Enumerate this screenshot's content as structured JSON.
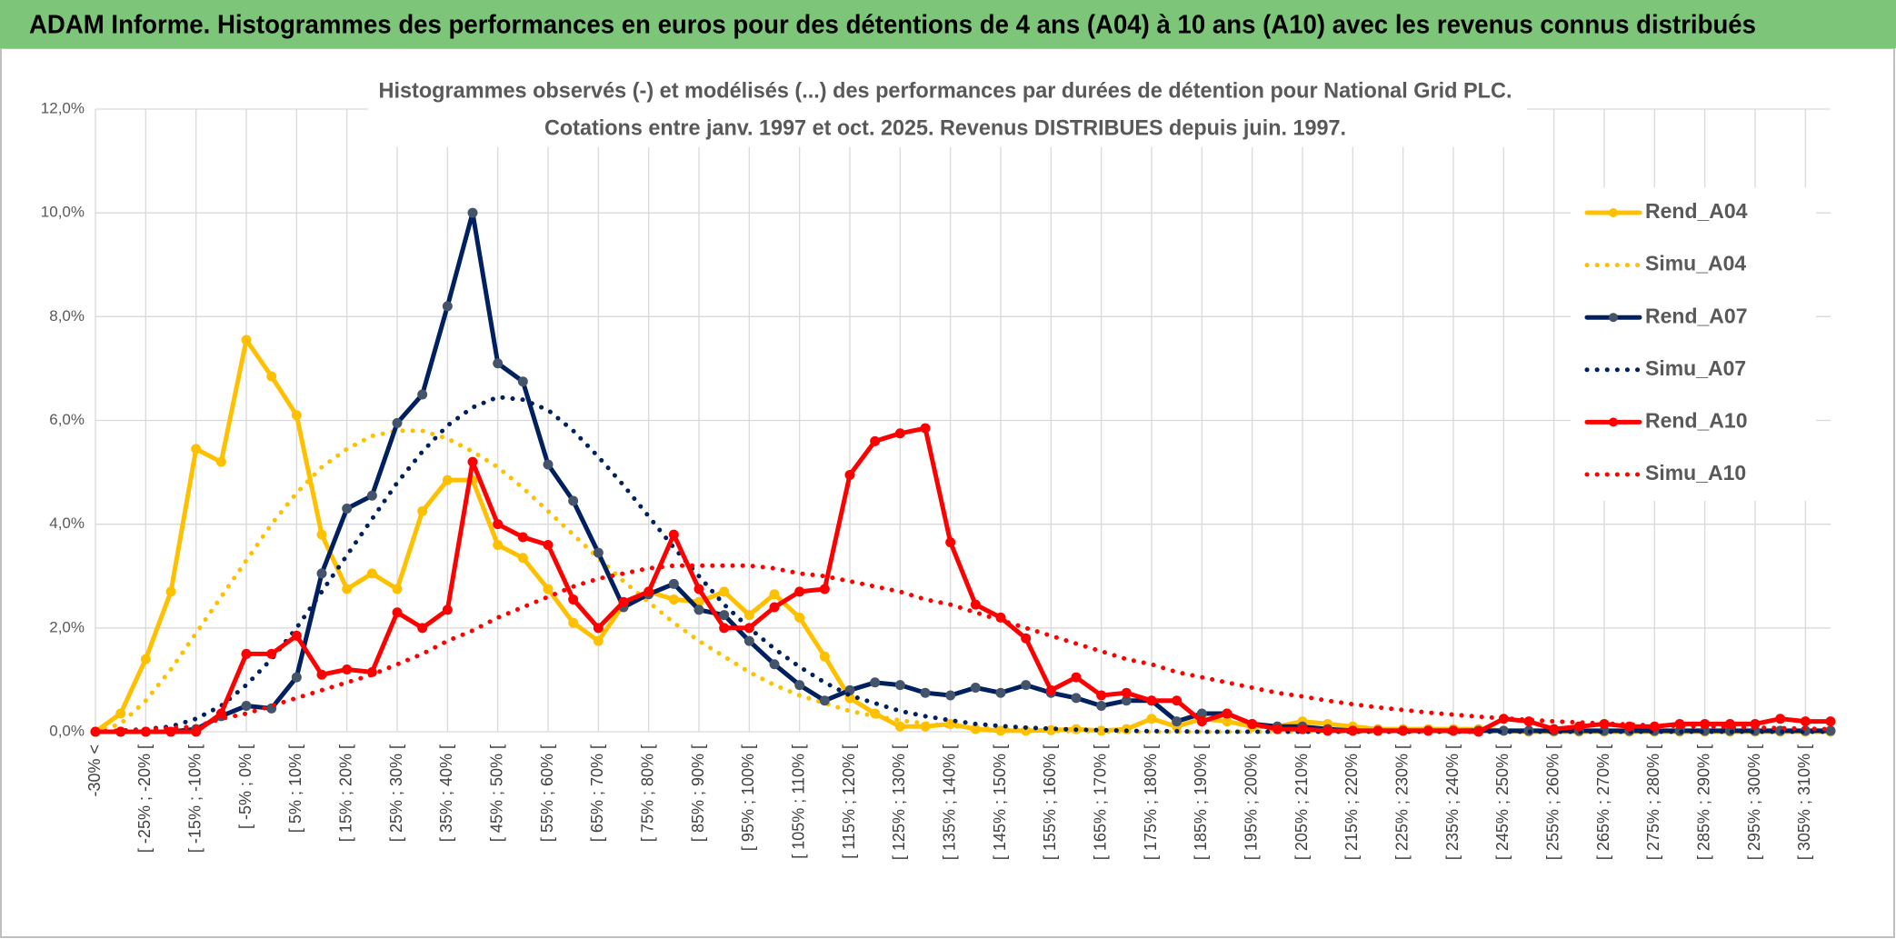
{
  "header": {
    "title": "ADAM Informe. Histogrammes des performances en euros pour des détentions de 4 ans (A04) à 10 ans (A10) avec les revenus connus distribués"
  },
  "chart_data": {
    "type": "line",
    "title": "Histogrammes observés (-) et modélisés (...) des performances par durées de détention pour National Grid PLC.",
    "subtitle": "Cotations entre janv. 1997 et oct. 2025. Revenus DISTRIBUES depuis juin. 1997.",
    "categories": [
      "-30% <",
      null,
      "[ -25% ; -20% [",
      null,
      "[ -15% ; -10% [",
      null,
      "[ -5% ; 0% [",
      null,
      "[ 5% ; 10% [",
      null,
      "[ 15% ; 20% [",
      null,
      "[ 25% ; 30% [",
      null,
      "[ 35% ; 40% [",
      null,
      "[ 45% ; 50% [",
      null,
      "[ 55% ; 60% [",
      null,
      "[ 65% ; 70% [",
      null,
      "[ 75% ; 80% [",
      null,
      "[ 85% ; 90% [",
      null,
      "[ 95% ; 100% [",
      null,
      "[ 105% ; 110% [",
      null,
      "[ 115% ; 120% [",
      null,
      "[ 125% ; 130% [",
      null,
      "[ 135% ; 140% [",
      null,
      "[ 145% ; 150% [",
      null,
      "[ 155% ; 160% [",
      null,
      "[ 165% ; 170% [",
      null,
      "[ 175% ; 180% [",
      null,
      "[ 185% ; 190% [",
      null,
      "[ 195% ; 200% [",
      null,
      "[ 205% ; 210% [",
      null,
      "[ 215% ; 220% [",
      null,
      "[ 225% ; 230% [",
      null,
      "[ 235% ; 240% [",
      null,
      "[ 245% ; 250% [",
      null,
      "[ 255% ; 260% [",
      null,
      "[ 265% ; 270% [",
      null,
      "[ 275% ; 280% [",
      null,
      "[ 285% ; 290% [",
      null,
      "[ 295% ; 300% [",
      null,
      "[ 305% ; 310% [",
      null
    ],
    "series": [
      {
        "name": "Rend_A04",
        "color": "#FFC000",
        "style": "solid",
        "markers": true,
        "marker_color": "#FFC000",
        "values": [
          0,
          0.35,
          1.4,
          2.7,
          5.45,
          5.2,
          7.55,
          6.85,
          6.1,
          3.8,
          2.75,
          3.05,
          2.75,
          4.25,
          4.85,
          4.85,
          3.6,
          3.35,
          2.75,
          2.1,
          1.75,
          2.45,
          2.7,
          2.55,
          2.5,
          2.7,
          2.25,
          2.65,
          2.2,
          1.45,
          0.65,
          0.35,
          0.1,
          0.1,
          0.15,
          0.05,
          0.02,
          0.02,
          0.03,
          0.05,
          0.02,
          0.05,
          0.25,
          0.1,
          0.25,
          0.2,
          0.1,
          0.1,
          0.2,
          0.15,
          0.1,
          0.05,
          0.05,
          0.05,
          0.05,
          0.05,
          0.02,
          0,
          0,
          0,
          0,
          0,
          0,
          0,
          0,
          0,
          0,
          0,
          0,
          0
        ]
      },
      {
        "name": "Simu_A04",
        "color": "#FFC000",
        "style": "dotted",
        "markers": false,
        "values": [
          0,
          0.15,
          0.6,
          1.2,
          1.9,
          2.6,
          3.3,
          4.0,
          4.6,
          5.1,
          5.45,
          5.7,
          5.8,
          5.8,
          5.65,
          5.4,
          5.1,
          4.7,
          4.25,
          3.8,
          3.35,
          2.9,
          2.5,
          2.1,
          1.75,
          1.45,
          1.15,
          0.9,
          0.7,
          0.55,
          0.4,
          0.3,
          0.22,
          0.16,
          0.11,
          0.08,
          0.05,
          0.03,
          0.02,
          0.01,
          0.01,
          0,
          0,
          0,
          0,
          0,
          0,
          0,
          0,
          0,
          0,
          0,
          0,
          0,
          0,
          0,
          0,
          0,
          0,
          0,
          0,
          0,
          0,
          0,
          0,
          0,
          0,
          0,
          0,
          0
        ]
      },
      {
        "name": "Rend_A07",
        "color": "#002060",
        "style": "solid",
        "markers": true,
        "marker_color": "#44546A",
        "values": [
          0,
          0,
          0,
          0,
          0.05,
          0.3,
          0.5,
          0.45,
          1.05,
          3.05,
          4.3,
          4.55,
          5.95,
          6.5,
          8.2,
          10.0,
          7.1,
          6.75,
          5.15,
          4.45,
          3.45,
          2.4,
          2.65,
          2.85,
          2.35,
          2.25,
          1.75,
          1.3,
          0.9,
          0.6,
          0.8,
          0.95,
          0.9,
          0.75,
          0.7,
          0.85,
          0.75,
          0.9,
          0.75,
          0.65,
          0.5,
          0.6,
          0.6,
          0.2,
          0.35,
          0.35,
          0.15,
          0.1,
          0.1,
          0.05,
          0.02,
          0.02,
          0.02,
          0.02,
          0.02,
          0.02,
          0.02,
          0.02,
          0.02,
          0.02,
          0.02,
          0.02,
          0.02,
          0.02,
          0.02,
          0.02,
          0.02,
          0.02,
          0.02,
          0.02
        ]
      },
      {
        "name": "Simu_A07",
        "color": "#002060",
        "style": "dotted",
        "markers": false,
        "values": [
          0,
          0.02,
          0.05,
          0.1,
          0.25,
          0.5,
          0.9,
          1.4,
          2.0,
          2.7,
          3.4,
          4.1,
          4.8,
          5.4,
          5.9,
          6.25,
          6.45,
          6.4,
          6.2,
          5.8,
          5.3,
          4.75,
          4.15,
          3.55,
          3.0,
          2.45,
          2.0,
          1.6,
          1.25,
          0.95,
          0.7,
          0.55,
          0.4,
          0.3,
          0.22,
          0.15,
          0.11,
          0.08,
          0.06,
          0.04,
          0.03,
          0.02,
          0.01,
          0.01,
          0,
          0,
          0,
          0,
          0,
          0,
          0,
          0,
          0,
          0,
          0,
          0,
          0,
          0,
          0,
          0,
          0,
          0,
          0,
          0,
          0,
          0,
          0,
          0,
          0,
          0
        ]
      },
      {
        "name": "Rend_A10",
        "color": "#FF0000",
        "style": "solid",
        "markers": true,
        "marker_color": "#FF0000",
        "values": [
          0,
          0,
          0,
          0,
          0,
          0.35,
          1.5,
          1.5,
          1.85,
          1.1,
          1.2,
          1.15,
          2.3,
          2.0,
          2.35,
          5.2,
          4.0,
          3.75,
          3.6,
          2.55,
          2.0,
          2.5,
          2.7,
          3.8,
          2.75,
          2.0,
          2.0,
          2.4,
          2.7,
          2.75,
          4.95,
          5.6,
          5.75,
          5.85,
          3.65,
          2.45,
          2.2,
          1.8,
          0.8,
          1.05,
          0.7,
          0.75,
          0.6,
          0.6,
          0.2,
          0.35,
          0.15,
          0.05,
          0.05,
          0.02,
          0.02,
          0.02,
          0.02,
          0.02,
          0.02,
          0,
          0.25,
          0.2,
          0.05,
          0.1,
          0.15,
          0.1,
          0.1,
          0.15,
          0.15,
          0.15,
          0.15,
          0.25,
          0.2,
          0.2
        ]
      },
      {
        "name": "Simu_A10",
        "color": "#FF0000",
        "style": "dotted",
        "markers": false,
        "values": [
          0,
          0.02,
          0.04,
          0.07,
          0.1,
          0.25,
          0.35,
          0.5,
          0.65,
          0.8,
          0.95,
          1.1,
          1.3,
          1.5,
          1.75,
          1.95,
          2.2,
          2.4,
          2.6,
          2.8,
          2.95,
          3.05,
          3.15,
          3.2,
          3.2,
          3.2,
          3.2,
          3.15,
          3.05,
          3.0,
          2.9,
          2.8,
          2.7,
          2.55,
          2.45,
          2.3,
          2.15,
          2.0,
          1.85,
          1.7,
          1.55,
          1.4,
          1.3,
          1.15,
          1.05,
          0.95,
          0.85,
          0.75,
          0.68,
          0.6,
          0.53,
          0.47,
          0.42,
          0.37,
          0.33,
          0.29,
          0.26,
          0.23,
          0.2,
          0.18,
          0.16,
          0.14,
          0.12,
          0.11,
          0.1,
          0.09,
          0.08,
          0.07,
          0.06,
          0.05
        ]
      }
    ],
    "ylim": [
      0,
      12
    ],
    "yticks": [
      {
        "value": 0,
        "label": "0,0%"
      },
      {
        "value": 2,
        "label": "2,0%"
      },
      {
        "value": 4,
        "label": "4,0%"
      },
      {
        "value": 6,
        "label": "6,0%"
      },
      {
        "value": 8,
        "label": "8,0%"
      },
      {
        "value": 10,
        "label": "10,0%"
      },
      {
        "value": 12,
        "label": "12,0%"
      }
    ],
    "grid": true,
    "legend_position": "upper right"
  }
}
